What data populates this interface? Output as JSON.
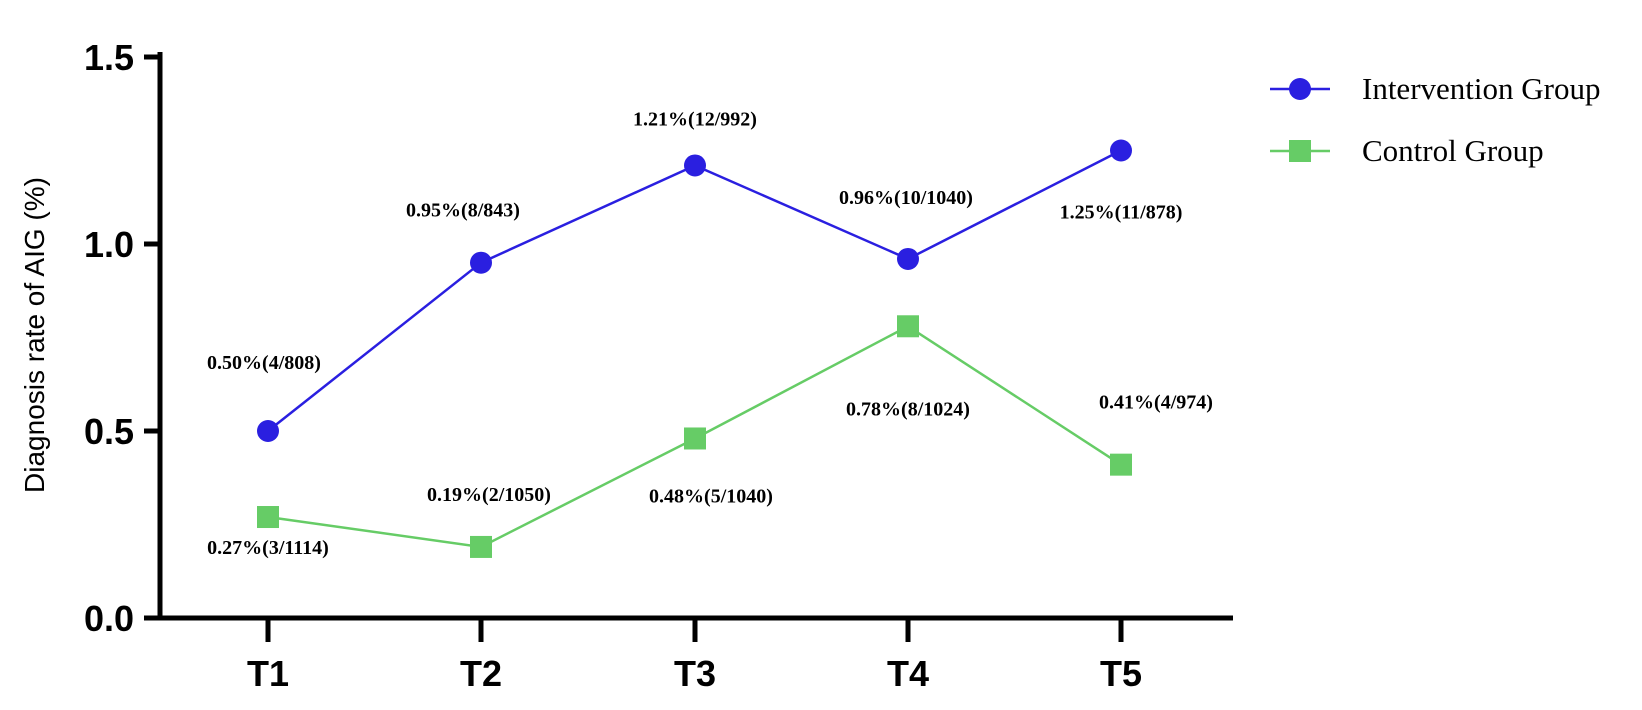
{
  "chart_data": {
    "type": "line",
    "categories": [
      "T1",
      "T2",
      "T3",
      "T4",
      "T5"
    ],
    "ylabel": "Diagnosis rate of AIG (%)",
    "xlabel": "",
    "ylim": [
      0,
      1.5
    ],
    "yticks": [
      "0.0",
      "0.5",
      "1.0",
      "1.5"
    ],
    "grid": false,
    "legend_position": "top-right",
    "series": [
      {
        "name": "Intervention Group",
        "color": "#2A1FE0",
        "marker": "circle",
        "values": [
          0.5,
          0.95,
          1.21,
          0.96,
          1.25
        ],
        "labels": [
          "0.50%(4/808)",
          "0.95%(8/843)",
          "1.21%(12/992)",
          "0.96%(10/1040)",
          "1.25%(11/878)"
        ]
      },
      {
        "name": "Control Group",
        "color": "#66CC66",
        "marker": "square",
        "values": [
          0.27,
          0.19,
          0.48,
          0.78,
          0.41
        ],
        "labels": [
          "0.27%(3/1114)",
          "0.19%(2/1050)",
          "0.48%(5/1040)",
          "0.78%(8/1024)",
          "0.41%(4/974)"
        ]
      }
    ]
  }
}
